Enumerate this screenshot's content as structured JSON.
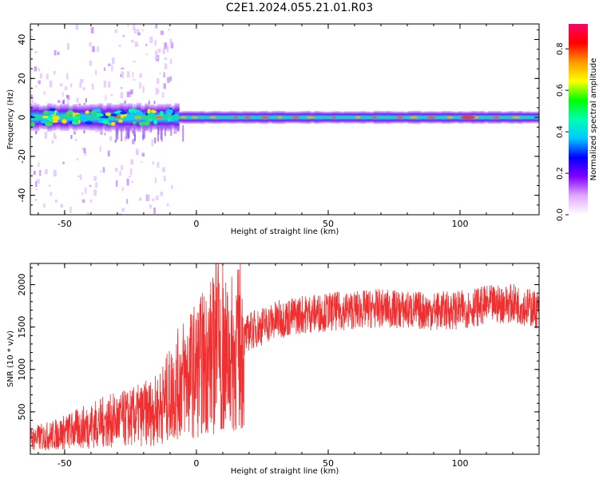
{
  "title": "C2E1.2024.055.21.01.R03",
  "colors": {
    "snr_line": "#f03030",
    "band_core": "#2ad36a",
    "band_edge": "#8a2be2",
    "axis": "#000000"
  },
  "chart_data": [
    {
      "type": "heatmap",
      "title": "",
      "xlabel": "Height of straight line (km)",
      "ylabel": "Frequency (Hz)",
      "xlim": [
        -63,
        130
      ],
      "ylim": [
        -50,
        48
      ],
      "xticks": [
        -50,
        0,
        50,
        100
      ],
      "yticks": [
        -40,
        -20,
        0,
        20,
        40
      ],
      "description_values": {
        "band_center_hz": 0,
        "band_halfwidth_hz_low_altitude": 6,
        "band_halfwidth_hz_high_altitude": 3,
        "noise_region_km": [
          -63,
          -8
        ]
      },
      "colorbar": {
        "label": "Normalized spectral amplitude",
        "range": [
          0.0,
          0.92
        ],
        "ticks": [
          0.0,
          0.2,
          0.4,
          0.6,
          0.8
        ],
        "colormap": [
          "#ffffff",
          "#e0a8ff",
          "#8000ff",
          "#0000ff",
          "#00c8ff",
          "#00ffb0",
          "#00ff00",
          "#ffff00",
          "#ff9900",
          "#ff0000",
          "#ff0066"
        ]
      }
    },
    {
      "type": "line",
      "title": "",
      "xlabel": "Height of straight line (km)",
      "ylabel": "SNR (10 * v/v)",
      "xlim": [
        -63,
        130
      ],
      "ylim": [
        0,
        2250
      ],
      "xticks": [
        -50,
        0,
        50,
        100
      ],
      "yticks": [
        500,
        1000,
        1500,
        2000
      ],
      "series": [
        {
          "name": "",
          "x": [
            -63,
            -55,
            -45,
            -35,
            -25,
            -15,
            -10,
            -5,
            0,
            5,
            8,
            10,
            15,
            20,
            30,
            40,
            50,
            60,
            70,
            80,
            90,
            100,
            110,
            120,
            130
          ],
          "y": [
            180,
            220,
            300,
            380,
            430,
            520,
            700,
            900,
            1000,
            1150,
            1200,
            1100,
            1200,
            1450,
            1580,
            1650,
            1680,
            1700,
            1720,
            1700,
            1690,
            1700,
            1760,
            1780,
            1700
          ]
        }
      ]
    }
  ]
}
